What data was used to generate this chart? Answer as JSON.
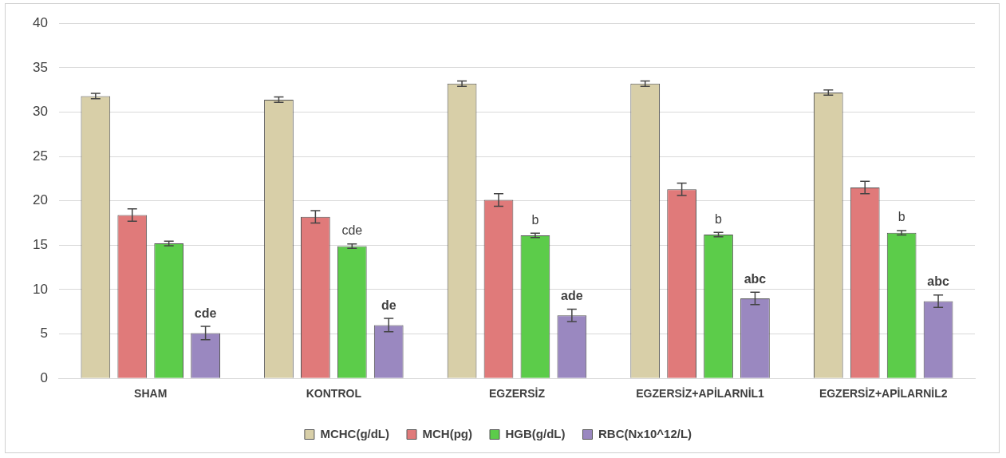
{
  "chart_data": {
    "type": "bar",
    "categories": [
      "SHAM",
      "KONTROL",
      "EGZERSİZ",
      "EGZERSİZ+APİLARNİL1",
      "EGZERSİZ+APİLARNİL2"
    ],
    "series": [
      {
        "name": "MCHC(g/dL)",
        "color": "#d8cfa8",
        "values": [
          31.8,
          31.4,
          33.2,
          33.2,
          32.2
        ],
        "errors": [
          0.3,
          0.3,
          0.3,
          0.3,
          0.3
        ]
      },
      {
        "name": "MCH(pg)",
        "color": "#e07a7a",
        "values": [
          18.4,
          18.2,
          20.1,
          21.3,
          21.5
        ],
        "errors": [
          0.7,
          0.7,
          0.7,
          0.7,
          0.7
        ]
      },
      {
        "name": "HGB(g/dL)",
        "color": "#5ccc4a",
        "values": [
          15.2,
          14.9,
          16.1,
          16.2,
          16.4
        ],
        "errors": [
          0.25,
          0.25,
          0.25,
          0.25,
          0.25
        ],
        "value_labels": [
          null,
          "cde",
          "b",
          "b",
          "b"
        ]
      },
      {
        "name": "RBC(Nx10^12/L)",
        "color": "#9a88c0",
        "values": [
          5.1,
          6.0,
          7.1,
          9.0,
          8.7
        ],
        "errors": [
          0.75,
          0.75,
          0.7,
          0.7,
          0.7
        ],
        "value_labels": [
          "cde",
          "de",
          "ade",
          "abc",
          "abc"
        ]
      }
    ],
    "ylim": [
      0,
      40
    ],
    "yticks": [
      0,
      5,
      10,
      15,
      20,
      25,
      30,
      35,
      40
    ],
    "grid": "y",
    "legend": "bottom"
  }
}
